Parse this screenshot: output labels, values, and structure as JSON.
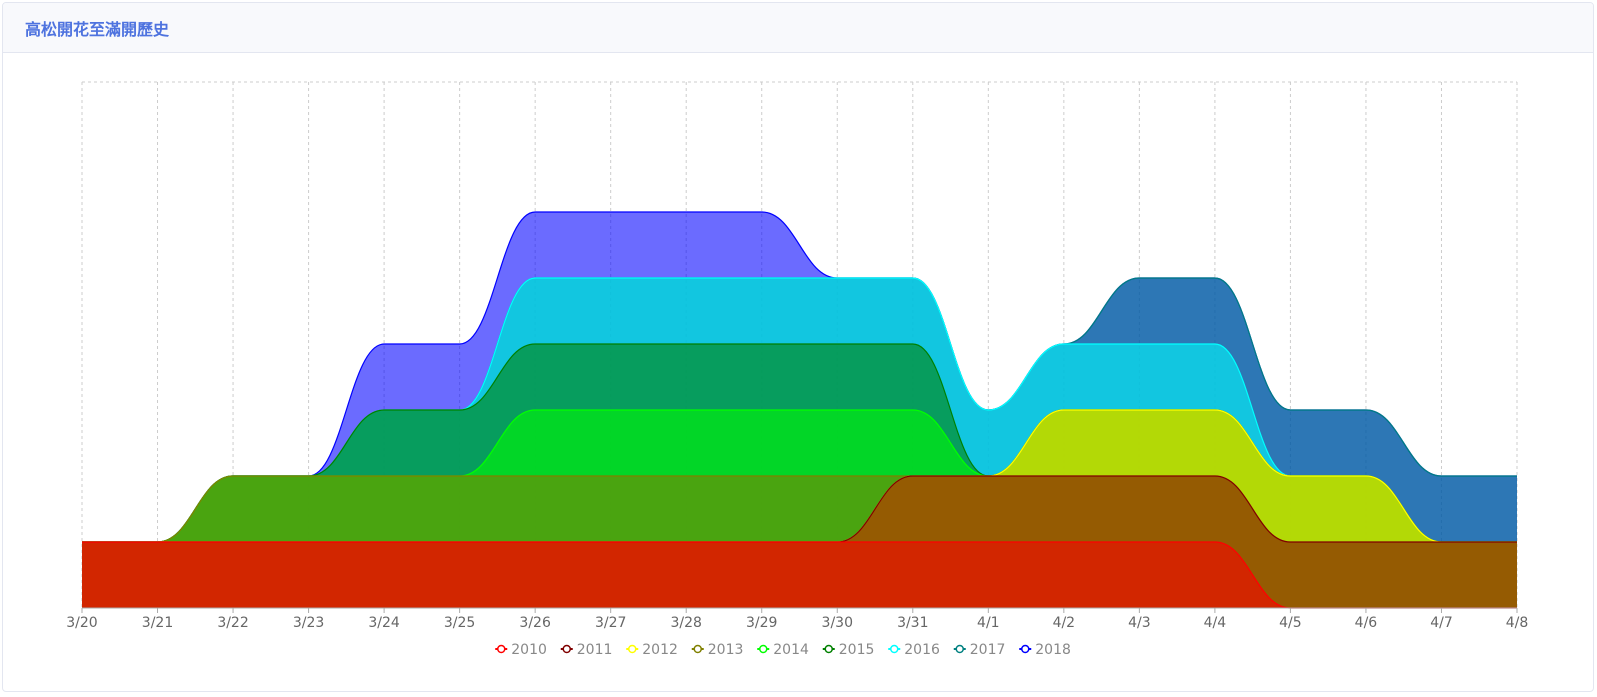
{
  "header": {
    "title": "高松開花至滿開歷史"
  },
  "chart_data": {
    "type": "area",
    "title": "",
    "xlabel": "",
    "ylabel": "",
    "stacked": true,
    "categories": [
      "3/20",
      "3/21",
      "3/22",
      "3/23",
      "3/24",
      "3/25",
      "3/26",
      "3/27",
      "3/28",
      "3/29",
      "3/30",
      "3/31",
      "4/1",
      "4/2",
      "4/3",
      "4/4",
      "4/5",
      "4/6",
      "4/7",
      "4/8"
    ],
    "legend_position": "bottom",
    "grid": true,
    "series": [
      {
        "name": "2010",
        "color": "#ff0000",
        "values": [
          1,
          1,
          1,
          1,
          1,
          1,
          1,
          1,
          1,
          1,
          1,
          1,
          1,
          1,
          1,
          1,
          0,
          0,
          0,
          0
        ]
      },
      {
        "name": "2011",
        "color": "#800000",
        "values": [
          0,
          0,
          0,
          0,
          0,
          0,
          0,
          0,
          0,
          0,
          0,
          1,
          1,
          1,
          1,
          1,
          1,
          1,
          1,
          1
        ]
      },
      {
        "name": "2012",
        "color": "#ffff00",
        "values": [
          0,
          0,
          0,
          0,
          0,
          0,
          0,
          0,
          0,
          0,
          0,
          0,
          0,
          1,
          1,
          1,
          1,
          1,
          0,
          0
        ]
      },
      {
        "name": "2013",
        "color": "#808000",
        "values": [
          0,
          0,
          1,
          1,
          1,
          1,
          1,
          1,
          1,
          1,
          1,
          0,
          0,
          0,
          0,
          0,
          0,
          0,
          0,
          0
        ]
      },
      {
        "name": "2014",
        "color": "#00ff00",
        "values": [
          0,
          0,
          0,
          0,
          0,
          0,
          1,
          1,
          1,
          1,
          1,
          1,
          0,
          0,
          0,
          0,
          0,
          0,
          0,
          0
        ]
      },
      {
        "name": "2015",
        "color": "#008000",
        "values": [
          0,
          0,
          0,
          0,
          1,
          1,
          1,
          1,
          1,
          1,
          1,
          1,
          0,
          0,
          0,
          0,
          0,
          0,
          0,
          0
        ]
      },
      {
        "name": "2016",
        "color": "#00ffff",
        "values": [
          0,
          0,
          0,
          0,
          0,
          0,
          1,
          1,
          1,
          1,
          1,
          1,
          1,
          1,
          1,
          1,
          0,
          0,
          0,
          0
        ]
      },
      {
        "name": "2017",
        "color": "#008080",
        "values": [
          0,
          0,
          0,
          0,
          0,
          0,
          0,
          0,
          0,
          0,
          0,
          0,
          0,
          0,
          1,
          1,
          1,
          1,
          1,
          1
        ]
      },
      {
        "name": "2018",
        "color": "#0000ff",
        "values": [
          0,
          0,
          0,
          0,
          1,
          1,
          1,
          1,
          1,
          1,
          0,
          0,
          0,
          0,
          0,
          0,
          0,
          0,
          0,
          0
        ]
      }
    ]
  }
}
